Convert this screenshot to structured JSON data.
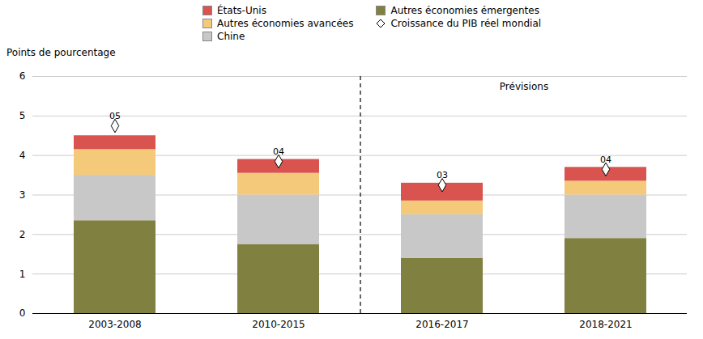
{
  "chart_data": {
    "type": "bar",
    "stacked": true,
    "categories": [
      "2003-2008",
      "2010-2015",
      "2016-2017",
      "2018-2021"
    ],
    "ylabel": "Points de pourcentage",
    "ylim": [
      0,
      6
    ],
    "yticks": [
      0,
      1,
      2,
      3,
      4,
      5,
      6
    ],
    "grid": true,
    "legend": "top",
    "series": [
      {
        "name": "Autres économies émergentes",
        "color": "#808040",
        "values": [
          2.35,
          1.75,
          1.4,
          1.9
        ]
      },
      {
        "name": "Chine",
        "color": "#c8c8c8",
        "values": [
          1.15,
          1.25,
          1.1,
          1.1
        ]
      },
      {
        "name": "Autres économies avancées",
        "color": "#f5c97a",
        "values": [
          0.65,
          0.55,
          0.35,
          0.35
        ]
      },
      {
        "name": "États-Unis",
        "color": "#d9534f",
        "values": [
          0.35,
          0.35,
          0.45,
          0.35
        ]
      },
      {
        "name": "Croissance du PIB réel mondial",
        "type": "scatter",
        "marker": "diamond",
        "data_labels": true,
        "values": [
          4.75,
          3.85,
          3.25,
          3.65
        ],
        "value_labels": [
          "05",
          "04",
          "03",
          "04"
        ]
      }
    ],
    "annotations": [
      {
        "text": "Prévisions",
        "categories": [
          "2016-2017",
          "2018-2021"
        ]
      }
    ]
  }
}
